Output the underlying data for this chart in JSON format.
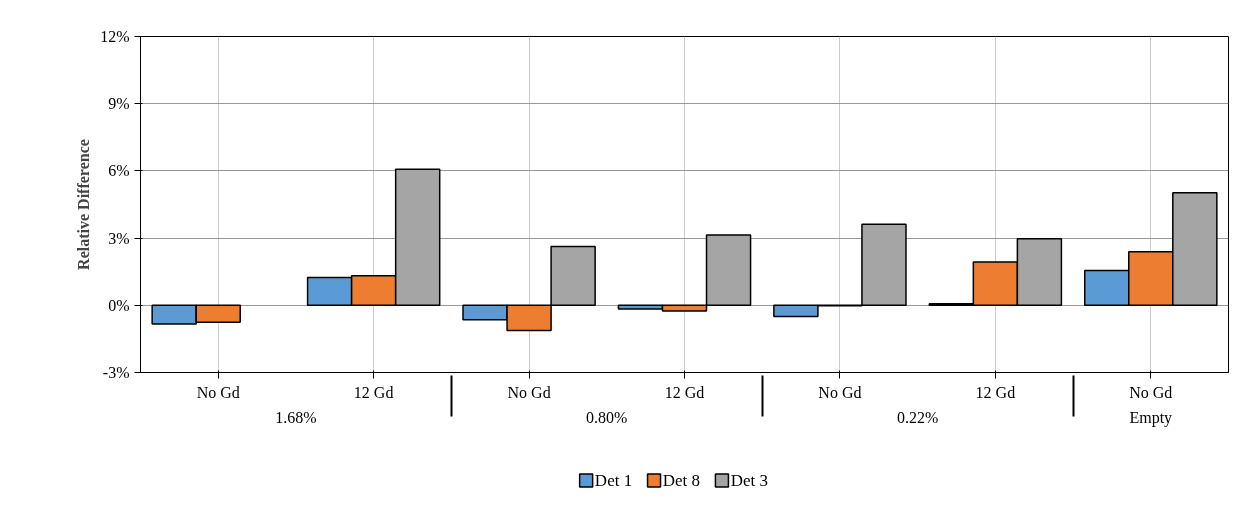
{
  "chart_data": {
    "type": "bar",
    "ylabel": "Relative Difference",
    "categories": [
      "No Gd",
      "12 Gd",
      "No Gd",
      "12 Gd",
      "No Gd",
      "12 Gd",
      "No Gd"
    ],
    "annotations": [
      "1.68%",
      "0.80%",
      "0.22%",
      "Empty"
    ],
    "series": [
      {
        "name": "Det 1",
        "color": "#5b9bd5",
        "values": [
          -0.83,
          1.24,
          -0.65,
          -0.16,
          -0.5,
          0.07,
          1.55
        ]
      },
      {
        "name": "Det 8",
        "color": "#ed7d31",
        "values": [
          -0.76,
          1.32,
          -1.13,
          -0.25,
          -0.02,
          1.93,
          2.39
        ]
      },
      {
        "name": "Det 3",
        "color": "#a5a5a5",
        "values": [
          null,
          6.07,
          2.63,
          3.14,
          3.62,
          2.97,
          5.02
        ]
      }
    ],
    "ylim": [
      -3,
      12
    ],
    "yticks": [
      {
        "value": -3,
        "label": "-3%"
      },
      {
        "value": 0,
        "label": "0%"
      },
      {
        "value": 3,
        "label": "3%"
      },
      {
        "value": 6,
        "label": "6%"
      },
      {
        "value": 9,
        "label": "9%"
      },
      {
        "value": 12,
        "label": "12%"
      }
    ],
    "grid": true,
    "legend": "bottom"
  }
}
